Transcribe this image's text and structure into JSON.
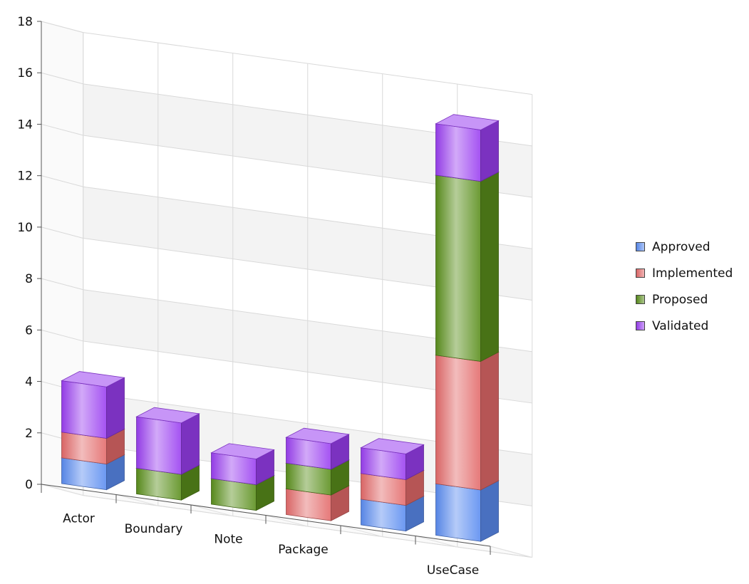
{
  "chart_data": {
    "type": "bar",
    "stacked": true,
    "three_d": true,
    "title": "",
    "xlabel": "",
    "ylabel": "",
    "ylim": [
      0,
      18
    ],
    "yticks": [
      0,
      2,
      4,
      6,
      8,
      10,
      12,
      14,
      16,
      18
    ],
    "grid": true,
    "legend_position": "right",
    "categories": [
      "Actor",
      "Boundary",
      "Note",
      "Package",
      "",
      "UseCase"
    ],
    "series": [
      {
        "name": "Approved",
        "color": "#5b8cf0",
        "values": [
          1,
          0,
          0,
          0,
          1,
          2
        ]
      },
      {
        "name": "Implemented",
        "color": "#e36a6a",
        "values": [
          1,
          0,
          0,
          1,
          1,
          5
        ]
      },
      {
        "name": "Proposed",
        "color": "#5a8f1c",
        "values": [
          0,
          1,
          1,
          1,
          0,
          7
        ]
      },
      {
        "name": "Validated",
        "color": "#9a3ff0",
        "values": [
          2,
          2,
          1,
          1,
          1,
          2
        ]
      }
    ]
  }
}
